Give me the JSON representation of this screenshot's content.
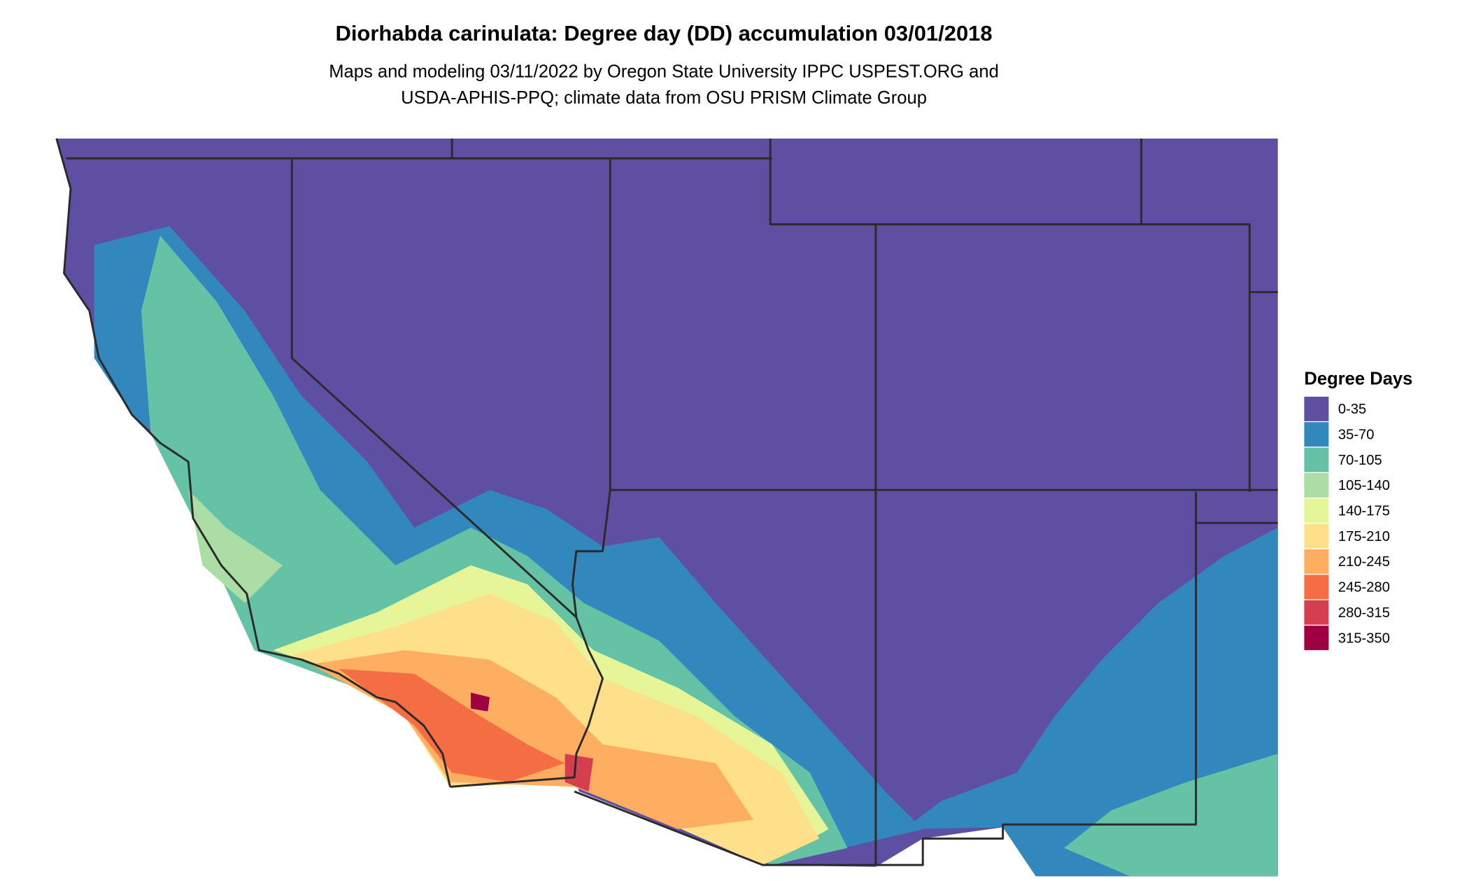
{
  "title": "Diorhabda carinulata: Degree day (DD) accumulation 03/01/2018",
  "subtitle": [
    "Maps and modeling 03/11/2022 by Oregon State University IPPC USPEST.ORG and",
    "USDA-APHIS-PPQ; climate data from OSU PRISM Climate Group"
  ],
  "legend": {
    "title": "Degree Days",
    "items": [
      {
        "label": "0-35",
        "color": "#5e4fa2"
      },
      {
        "label": "35-70",
        "color": "#3288bd"
      },
      {
        "label": "70-105",
        "color": "#66c2a5"
      },
      {
        "label": "105-140",
        "color": "#abdda4"
      },
      {
        "label": "140-175",
        "color": "#e6f598"
      },
      {
        "label": "175-210",
        "color": "#fee08b"
      },
      {
        "label": "210-245",
        "color": "#fdae61"
      },
      {
        "label": "245-280",
        "color": "#f46d43"
      },
      {
        "label": "280-315",
        "color": "#d53e4f"
      },
      {
        "label": "315-350",
        "color": "#9e0142"
      }
    ]
  }
}
